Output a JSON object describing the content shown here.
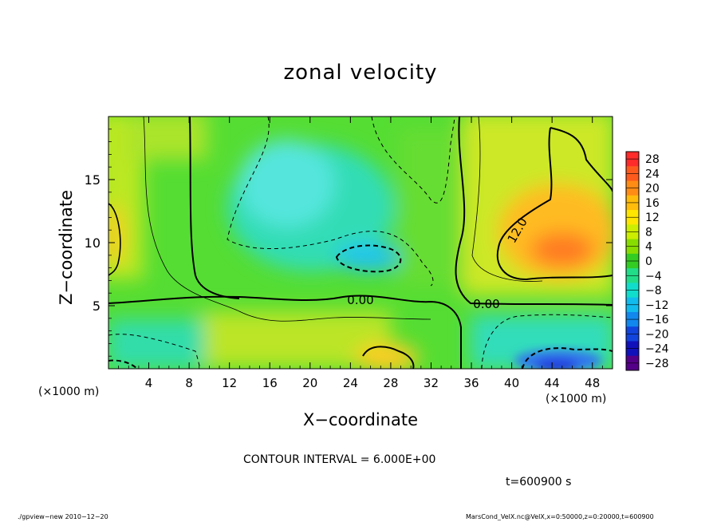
{
  "chart_data": {
    "type": "heatmap",
    "title": "zonal velocity",
    "xlabel": "X−coordinate",
    "ylabel": "Z−coordinate",
    "x_unit": "(×1000 m)",
    "xlim": [
      0,
      50
    ],
    "ylim": [
      0,
      20
    ],
    "x_ticks": [
      4,
      8,
      12,
      16,
      20,
      24,
      28,
      32,
      36,
      40,
      44,
      48
    ],
    "y_ticks": [
      5,
      10,
      15
    ],
    "colorbar_levels": [
      "28",
      "24",
      "20",
      "16",
      "12",
      "8",
      "4",
      "0",
      "−4",
      "−8",
      "−12",
      "−16",
      "−20",
      "−24",
      "−28"
    ],
    "colorbar_colors": [
      "#ff2a2a",
      "#ff5a1e",
      "#ff8c14",
      "#ffbc0a",
      "#ffe600",
      "#ccee00",
      "#88dd00",
      "#33cc22",
      "#22dd88",
      "#11ddcc",
      "#11bbee",
      "#1188ee",
      "#1144dd",
      "#1111bb",
      "#550088"
    ],
    "contour_labels": [
      {
        "text": "0.00",
        "x": 25.0,
        "y": 5.5
      },
      {
        "text": "0.00",
        "x": 37.5,
        "y": 5.2
      },
      {
        "text": "12.0",
        "x": 40.5,
        "y": 11.0
      }
    ],
    "contour_interval": "CONTOUR INTERVAL = 6.000E+00"
  },
  "time_label": "t=600900 s",
  "footer_left": "./gpview−new  2010−12−20",
  "footer_right": "MarsCond_VelX.nc@VelX,x=0:50000,z=0:20000,t=600900",
  "colors": {
    "blob_bg": "#44dd33",
    "cyan": "#33e5e5",
    "yellow": "#ddee22",
    "orange": "#ff9922",
    "blue": "#2255ee"
  }
}
